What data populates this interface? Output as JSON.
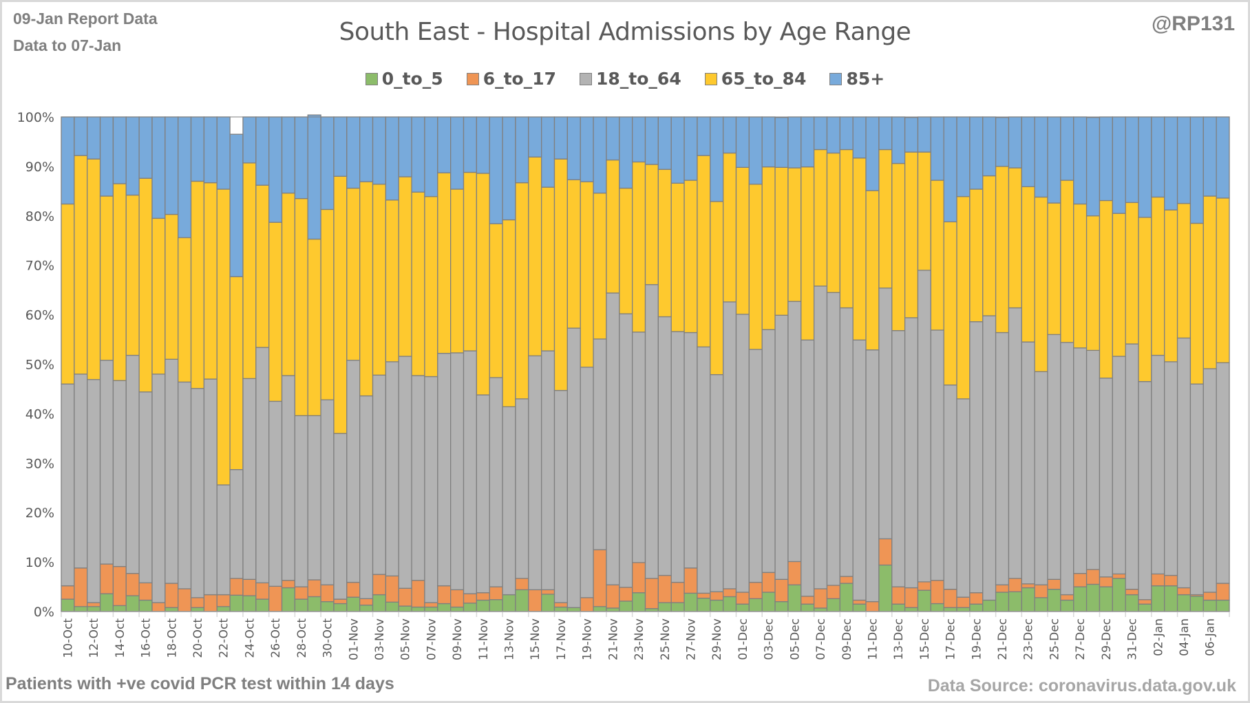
{
  "header": {
    "report_line": "09-Jan Report Data",
    "data_to_line": "Data to 07-Jan",
    "handle": "@RP131"
  },
  "footer": {
    "left_note": "Patients with  +ve covid PCR test within 14 days",
    "source": "Data Source: coronavirus.data.gov.uk"
  },
  "chart_data": {
    "type": "bar",
    "stacked": true,
    "normalized_percent": true,
    "title": "South East - Hospital Admissions by Age Range",
    "xlabel": "",
    "ylabel": "",
    "ylim": [
      0,
      100
    ],
    "y_ticks": [
      "0%",
      "10%",
      "20%",
      "30%",
      "40%",
      "50%",
      "60%",
      "70%",
      "80%",
      "90%",
      "100%"
    ],
    "grid": true,
    "legend_position": "top-center",
    "x_tick_every": 2,
    "categories": [
      "10-Oct",
      "11-Oct",
      "12-Oct",
      "13-Oct",
      "14-Oct",
      "15-Oct",
      "16-Oct",
      "17-Oct",
      "18-Oct",
      "19-Oct",
      "20-Oct",
      "21-Oct",
      "22-Oct",
      "23-Oct",
      "24-Oct",
      "25-Oct",
      "26-Oct",
      "27-Oct",
      "28-Oct",
      "29-Oct",
      "30-Oct",
      "31-Oct",
      "01-Nov",
      "02-Nov",
      "03-Nov",
      "04-Nov",
      "05-Nov",
      "06-Nov",
      "07-Nov",
      "08-Nov",
      "09-Nov",
      "10-Nov",
      "11-Nov",
      "12-Nov",
      "13-Nov",
      "14-Nov",
      "15-Nov",
      "16-Nov",
      "17-Nov",
      "18-Nov",
      "19-Nov",
      "20-Nov",
      "21-Nov",
      "22-Nov",
      "23-Nov",
      "24-Nov",
      "25-Nov",
      "26-Nov",
      "27-Nov",
      "28-Nov",
      "29-Nov",
      "30-Nov",
      "01-Dec",
      "02-Dec",
      "03-Dec",
      "04-Dec",
      "05-Dec",
      "06-Dec",
      "07-Dec",
      "08-Dec",
      "09-Dec",
      "10-Dec",
      "11-Dec",
      "12-Dec",
      "13-Dec",
      "14-Dec",
      "15-Dec",
      "16-Dec",
      "17-Dec",
      "18-Dec",
      "19-Dec",
      "20-Dec",
      "21-Dec",
      "22-Dec",
      "23-Dec",
      "24-Dec",
      "25-Dec",
      "26-Dec",
      "27-Dec",
      "28-Dec",
      "29-Dec",
      "30-Dec",
      "31-Dec",
      "01-Jan",
      "02-Jan",
      "03-Jan",
      "04-Jan",
      "05-Jan",
      "06-Jan",
      "07-Jan"
    ],
    "series": [
      {
        "name": "0_to_5",
        "color": "#8cbc6a",
        "values": [
          2.5,
          1.0,
          1.0,
          3.6,
          1.2,
          3.2,
          2.3,
          0.0,
          0.8,
          0.0,
          0.8,
          0.0,
          1.0,
          3.3,
          3.2,
          2.5,
          0.0,
          4.8,
          2.5,
          3.0,
          2.0,
          1.6,
          2.9,
          1.3,
          3.4,
          1.9,
          1.1,
          0.9,
          0.9,
          1.6,
          0.9,
          1.7,
          2.3,
          2.4,
          3.4,
          4.4,
          0.0,
          3.5,
          0.9,
          0.8,
          0.0,
          1.0,
          0.7,
          2.1,
          3.8,
          0.6,
          1.8,
          1.8,
          3.7,
          2.7,
          2.3,
          3.0,
          1.5,
          2.6,
          3.9,
          2.0,
          5.4,
          1.5,
          0.7,
          2.6,
          5.7,
          1.5,
          0.0,
          9.4,
          1.5,
          0.8,
          4.3,
          1.6,
          0.8,
          0.8,
          1.5,
          2.3,
          3.9,
          4.0,
          4.8,
          2.8,
          4.5,
          2.3,
          5.0,
          5.5,
          5.0,
          6.7,
          3.4,
          1.5,
          5.2,
          5.2,
          3.4,
          3.1,
          2.3,
          2.3
        ]
      },
      {
        "name": "6_to_17",
        "color": "#ef9555",
        "values": [
          2.7,
          7.8,
          0.8,
          6.0,
          7.9,
          4.5,
          3.5,
          1.8,
          4.9,
          4.6,
          2.0,
          3.4,
          2.4,
          3.4,
          3.3,
          3.3,
          5.1,
          1.5,
          2.5,
          3.4,
          3.4,
          0.9,
          3.0,
          1.3,
          4.1,
          5.3,
          3.6,
          5.4,
          0.9,
          3.6,
          3.5,
          1.9,
          1.5,
          2.6,
          0.0,
          2.3,
          4.4,
          0.9,
          0.9,
          0.0,
          2.8,
          11.5,
          4.7,
          2.8,
          6.1,
          6.1,
          5.5,
          4.1,
          5.1,
          1.0,
          1.7,
          1.6,
          2.4,
          3.3,
          4.0,
          4.5,
          4.7,
          1.6,
          3.9,
          2.7,
          1.4,
          0.8,
          2.0,
          5.3,
          3.5,
          4.0,
          1.7,
          4.7,
          3.7,
          2.1,
          2.3,
          0.0,
          1.5,
          2.7,
          0.8,
          2.6,
          2.0,
          1.1,
          2.7,
          3.0,
          2.0,
          0.9,
          1.1,
          0.9,
          2.4,
          2.1,
          1.4,
          0.3,
          1.6,
          3.4
        ]
      },
      {
        "name": "18_to_64",
        "color": "#b3b3b3",
        "values": [
          40.8,
          39.2,
          45.1,
          41.2,
          37.6,
          44.1,
          38.6,
          46.2,
          45.3,
          41.8,
          42.3,
          43.6,
          22.2,
          22.0,
          40.6,
          47.6,
          37.4,
          41.4,
          34.6,
          33.2,
          37.4,
          33.5,
          44.9,
          41.0,
          40.3,
          43.3,
          46.9,
          41.4,
          45.7,
          47.0,
          47.9,
          49.1,
          40.0,
          42.3,
          38.0,
          36.3,
          47.3,
          48.3,
          42.9,
          56.5,
          46.6,
          42.6,
          59.0,
          55.3,
          46.6,
          59.4,
          52.3,
          50.7,
          47.6,
          49.8,
          43.9,
          58.0,
          56.2,
          47.1,
          49.1,
          53.4,
          52.6,
          51.8,
          61.2,
          59.2,
          54.3,
          52.6,
          50.9,
          50.7,
          51.8,
          54.6,
          63.0,
          50.6,
          41.3,
          40.1,
          54.8,
          57.5,
          51.0,
          54.7,
          48.9,
          43.1,
          49.5,
          51.0,
          45.6,
          44.3,
          40.2,
          44.0,
          49.6,
          44.1,
          44.2,
          43.2,
          50.5,
          42.6,
          45.2,
          44.6
        ]
      },
      {
        "name": "65_to_84",
        "color": "#fec92e",
        "values": [
          36.4,
          44.2,
          44.6,
          33.2,
          39.8,
          32.4,
          43.2,
          31.5,
          29.3,
          29.2,
          41.9,
          39.7,
          59.8,
          39.0,
          43.6,
          32.8,
          36.2,
          36.9,
          43.9,
          35.7,
          38.5,
          52.0,
          34.8,
          43.3,
          38.6,
          32.7,
          36.3,
          37.1,
          36.4,
          36.5,
          33.1,
          36.1,
          44.8,
          31.1,
          37.8,
          43.7,
          40.2,
          33.1,
          46.8,
          30.0,
          37.5,
          29.5,
          26.9,
          25.4,
          34.4,
          24.3,
          29.8,
          30.0,
          30.8,
          38.7,
          35.0,
          30.1,
          29.7,
          33.4,
          32.9,
          29.9,
          27.0,
          35.0,
          27.6,
          28.2,
          32.0,
          36.8,
          32.2,
          28.0,
          33.8,
          33.5,
          23.9,
          30.3,
          33.0,
          40.9,
          26.8,
          28.3,
          33.6,
          28.3,
          31.4,
          35.3,
          26.6,
          32.8,
          29.1,
          27.2,
          35.9,
          28.9,
          28.6,
          33.2,
          32.0,
          30.7,
          27.2,
          32.5,
          34.9,
          33.3
        ]
      },
      {
        "name": "85+",
        "color": "#78aadb",
        "values": [
          17.6,
          7.8,
          8.5,
          16.0,
          13.5,
          15.8,
          12.4,
          20.5,
          19.7,
          24.4,
          13.0,
          13.3,
          14.6,
          28.8,
          9.3,
          13.8,
          21.3,
          15.4,
          16.5,
          25.1,
          18.7,
          12.0,
          14.4,
          13.1,
          13.6,
          16.8,
          12.1,
          15.2,
          16.1,
          11.3,
          14.6,
          11.2,
          11.4,
          21.6,
          20.8,
          13.3,
          8.1,
          14.2,
          8.5,
          12.7,
          13.1,
          15.4,
          8.7,
          14.4,
          9.1,
          9.6,
          10.6,
          13.4,
          12.8,
          7.8,
          17.1,
          7.3,
          10.2,
          13.6,
          10.1,
          10.1,
          10.3,
          10.1,
          6.6,
          7.3,
          6.6,
          8.3,
          14.9,
          6.6,
          9.4,
          7.0,
          7.1,
          12.8,
          21.2,
          16.1,
          14.6,
          11.9,
          9.9,
          10.3,
          14.1,
          16.2,
          17.4,
          12.8,
          17.6,
          19.9,
          16.9,
          19.5,
          17.3,
          20.3,
          16.2,
          18.8,
          17.5,
          21.5,
          16.0,
          16.4
        ]
      }
    ]
  }
}
